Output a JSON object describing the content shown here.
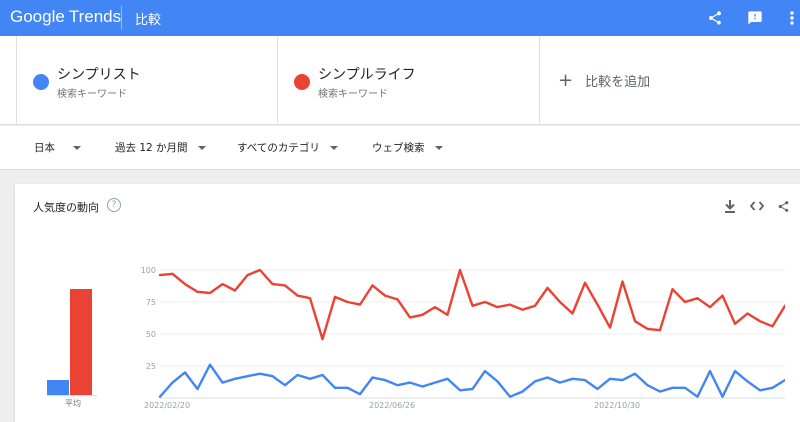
{
  "appbar": {
    "brand_google": "Google",
    "brand_trends": "Trends",
    "page_title": "比較",
    "icons": [
      "share-icon",
      "feedback-icon",
      "more-vert-icon"
    ]
  },
  "terms": [
    {
      "name": "シンプリスト",
      "type": "検索キーワード",
      "color": "#4285f4"
    },
    {
      "name": "シンプルライフ",
      "type": "検索キーワード",
      "color": "#ea4335"
    }
  ],
  "add_compare": {
    "plus": "+",
    "label": "比較を追加"
  },
  "filters": {
    "region": "日本",
    "period": "過去 12 か月間",
    "category": "すべてのカテゴリ",
    "search_type": "ウェブ検索"
  },
  "card": {
    "title": "人気度の動向",
    "help": "?",
    "action_icons": [
      "download-icon",
      "embed-icon",
      "share-icon"
    ]
  },
  "chart_data": {
    "type": "line",
    "y_ticks": [
      "100",
      "75",
      "50",
      "25"
    ],
    "ylim": [
      0,
      100
    ],
    "x_tick_labels": [
      {
        "label": "2022/02/20",
        "index": 0
      },
      {
        "label": "2022/06/26",
        "index": 18
      },
      {
        "label": "2022/10/30",
        "index": 36
      }
    ],
    "grid": true,
    "average_label": "平均",
    "averages": [
      11,
      76
    ],
    "series": [
      {
        "color": "#4285f4",
        "values": [
          1,
          12,
          20,
          7,
          26,
          12,
          15,
          17,
          19,
          17,
          10,
          18,
          15,
          18,
          8,
          8,
          3,
          16,
          14,
          10,
          12,
          9,
          12,
          15,
          6,
          7,
          21,
          13,
          1,
          5,
          13,
          16,
          12,
          15,
          14,
          7,
          15,
          14,
          19,
          10,
          5,
          8,
          8,
          1,
          21,
          1,
          21,
          13,
          6,
          8,
          14
        ]
      },
      {
        "color": "#ea4335",
        "values": [
          96,
          97,
          89,
          83,
          82,
          89,
          84,
          96,
          100,
          89,
          88,
          80,
          78,
          46,
          79,
          75,
          73,
          88,
          80,
          77,
          63,
          65,
          71,
          65,
          100,
          72,
          75,
          71,
          73,
          69,
          72,
          86,
          75,
          66,
          90,
          73,
          55,
          91,
          60,
          54,
          53,
          85,
          75,
          78,
          71,
          80,
          58,
          66,
          60,
          56,
          72
        ]
      }
    ]
  }
}
